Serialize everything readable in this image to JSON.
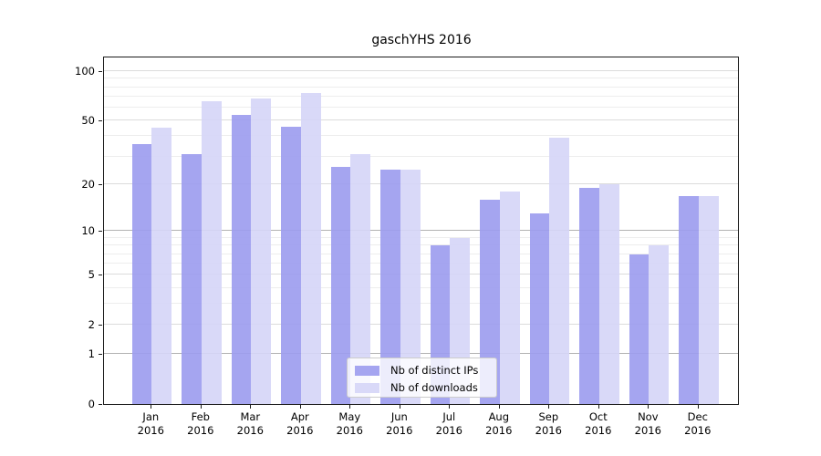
{
  "chart_data": {
    "type": "bar",
    "title": "gaschYHS 2016",
    "categories": [
      "Jan 2016",
      "Feb 2016",
      "Mar 2016",
      "Apr 2016",
      "May 2016",
      "Jun 2016",
      "Jul 2016",
      "Aug 2016",
      "Sep 2016",
      "Oct 2016",
      "Nov 2016",
      "Dec 2016"
    ],
    "x_tick_line1": [
      "Jan",
      "Feb",
      "Mar",
      "Apr",
      "May",
      "Jun",
      "Jul",
      "Aug",
      "Sep",
      "Oct",
      "Nov",
      "Dec"
    ],
    "x_tick_line2": [
      "2016",
      "2016",
      "2016",
      "2016",
      "2016",
      "2016",
      "2016",
      "2016",
      "2016",
      "2016",
      "2016",
      "2016"
    ],
    "series": [
      {
        "name": "Nb of distinct IPs",
        "values": [
          36,
          31,
          54,
          46,
          26,
          25,
          8,
          16,
          13,
          19,
          7,
          17
        ],
        "color": "rgba(155,155,238,0.9)"
      },
      {
        "name": "Nb of downloads",
        "values": [
          45,
          66,
          68,
          74,
          31,
          25,
          9,
          18,
          39,
          20,
          8,
          17
        ],
        "color": "rgba(213,213,247,0.9)"
      }
    ],
    "yscale": "log1p",
    "ylim": [
      0,
      110
    ],
    "yticks": [
      100,
      50,
      20,
      10,
      5,
      2,
      1,
      0
    ],
    "ytick_labels": [
      "100",
      "50",
      "20",
      "10",
      "5",
      "2",
      "1",
      "0"
    ],
    "minor_gridlines": [
      3,
      4,
      6,
      7,
      8,
      9,
      30,
      40,
      60,
      70,
      80,
      90
    ],
    "major_gridlines_light": [
      2,
      5,
      20,
      50,
      100
    ],
    "major_gridlines_dark": [
      1,
      10
    ],
    "grid": "on",
    "legend_position": "lower center",
    "colors": {
      "axis": "#1a1a1a",
      "grid_minor": "#ededed",
      "grid_major": "#dcdcdc",
      "grid_major_dark": "#b2b2b2",
      "background": "#ffffff"
    }
  }
}
